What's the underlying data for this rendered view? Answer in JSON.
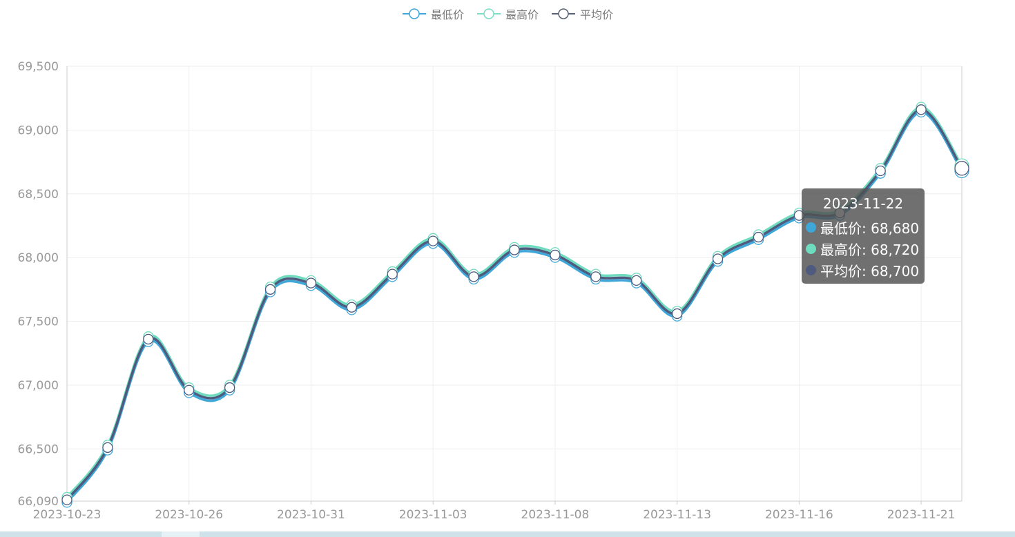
{
  "colors": {
    "min": "#3fa7d8",
    "max": "#6fdcbf",
    "avg": "#4e5a7e"
  },
  "legend": [
    {
      "label": "最低价",
      "color": "#3fa7d8"
    },
    {
      "label": "最高价",
      "color": "#7fdcc5"
    },
    {
      "label": "平均价",
      "color": "#5a6078"
    }
  ],
  "tooltip": {
    "title": "2023-11-22",
    "rows": [
      {
        "label": "最低价: 68,680",
        "color": "#3fa7d8"
      },
      {
        "label": "最高价: 68,720",
        "color": "#6fdcbf"
      },
      {
        "label": "平均价: 68,700",
        "color": "#4e5a7e"
      }
    ]
  },
  "chart_data": {
    "type": "line",
    "ylim": [
      66090,
      69500
    ],
    "y_ticks": [
      66090,
      66500,
      67000,
      67500,
      68000,
      68500,
      69000,
      69500
    ],
    "y_tick_labels": [
      "66,090",
      "66,500",
      "67,000",
      "67,500",
      "68,000",
      "68,500",
      "69,000",
      "69,500"
    ],
    "x_tick_labels": [
      "2023-10-23",
      "2023-10-26",
      "2023-10-31",
      "2023-11-03",
      "2023-11-08",
      "2023-11-13",
      "2023-11-16",
      "2023-11-21"
    ],
    "x_tick_every": 3,
    "n_points": 23,
    "grid": true,
    "legend_position": "top-center",
    "series": [
      {
        "name": "最低价",
        "values": [
          66080,
          66490,
          67340,
          66940,
          66960,
          67730,
          67780,
          67590,
          67850,
          68110,
          67830,
          68040,
          68000,
          67830,
          67800,
          67540,
          67970,
          68140,
          68310,
          68330,
          68660,
          69140,
          68680
        ]
      },
      {
        "name": "最高价",
        "values": [
          66120,
          66530,
          67380,
          66980,
          67000,
          67770,
          67820,
          67630,
          67890,
          68150,
          67870,
          68080,
          68040,
          67870,
          67840,
          67580,
          68010,
          68180,
          68350,
          68370,
          68700,
          69180,
          68720
        ]
      },
      {
        "name": "平均价",
        "values": [
          66100,
          66510,
          67360,
          66960,
          66980,
          67750,
          67800,
          67610,
          67870,
          68130,
          67850,
          68060,
          68020,
          67850,
          67820,
          67560,
          67990,
          68160,
          68330,
          68350,
          68680,
          69160,
          68700
        ]
      }
    ]
  }
}
